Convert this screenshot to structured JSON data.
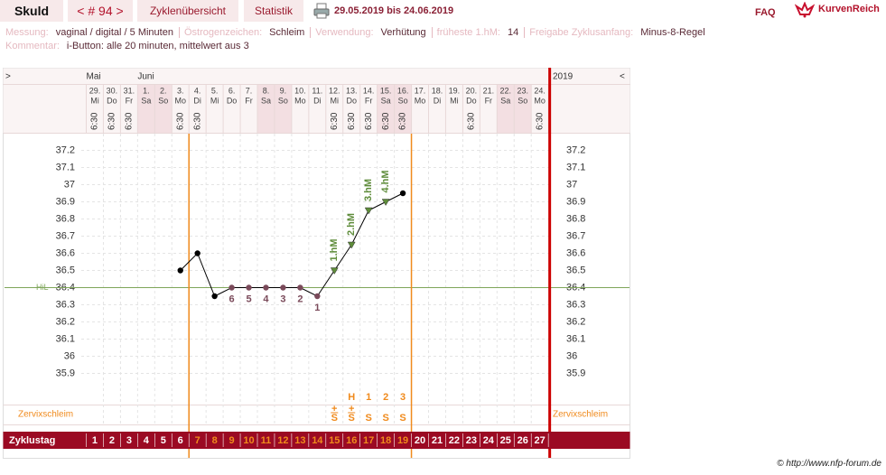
{
  "nav": {
    "user": "Skuld",
    "cycle": "< # 94 >",
    "overview": "Zyklenübersicht",
    "statistics": "Statistik",
    "range": "29.05.2019 bis 24.06.2019",
    "faq": "FAQ",
    "logo": "KurvenReich"
  },
  "info": [
    {
      "label": "Messung:",
      "value": "vaginal / digital / 5 Minuten"
    },
    {
      "label": "Östrogenzeichen:",
      "value": "Schleim"
    },
    {
      "label": "Verwendung:",
      "value": "Verhütung"
    },
    {
      "label": "früheste 1.hM:",
      "value": "14"
    },
    {
      "label": "Freigabe Zyklusanfang:",
      "value": "Minus-8-Regel"
    }
  ],
  "comment": {
    "label": "Kommentar:",
    "value": "i-Button: alle 20 minuten, mittelwert aus 3"
  },
  "chart_data": {
    "type": "line",
    "nav_left": ">",
    "nav_right": "<",
    "year": "2019",
    "month_labels": [
      "Mai",
      null,
      null,
      "Juni",
      null,
      null,
      null,
      null,
      null,
      null,
      null,
      null,
      null,
      null,
      null,
      null,
      null,
      null,
      null,
      null,
      null,
      null,
      null,
      null,
      null,
      null,
      null
    ],
    "categories": [
      "29.",
      "30.",
      "31.",
      "1.",
      "2.",
      "3.",
      "4.",
      "5.",
      "6.",
      "7.",
      "8.",
      "9.",
      "10.",
      "11.",
      "12.",
      "13.",
      "14.",
      "15.",
      "16.",
      "17.",
      "18.",
      "19.",
      "20.",
      "21.",
      "22.",
      "23.",
      "24."
    ],
    "weekdays": [
      "Mi",
      "Do",
      "Fr",
      "Sa",
      "So",
      "Mo",
      "Di",
      "Mi",
      "Do",
      "Fr",
      "Sa",
      "So",
      "Mo",
      "Di",
      "Mi",
      "Do",
      "Fr",
      "Sa",
      "So",
      "Mo",
      "Di",
      "Mi",
      "Do",
      "Fr",
      "Sa",
      "So",
      "Mo"
    ],
    "times": [
      "6:30",
      "6:30",
      "6:30",
      null,
      null,
      "6:30",
      "6:30",
      null,
      null,
      null,
      null,
      null,
      null,
      null,
      "6:30",
      "6:30",
      "6:30",
      "6:30",
      "6:30",
      null,
      null,
      null,
      "6:30",
      null,
      null,
      null,
      "6:30"
    ],
    "values": [
      null,
      null,
      null,
      null,
      null,
      36.5,
      36.6,
      36.35,
      36.4,
      36.4,
      36.4,
      36.4,
      36.4,
      36.35,
      36.5,
      36.65,
      36.85,
      36.9,
      36.95,
      null,
      null,
      null,
      null,
      null,
      null,
      null,
      null
    ],
    "point_labels": [
      null,
      null,
      null,
      null,
      null,
      null,
      null,
      null,
      "6",
      "5",
      "4",
      "3",
      "2",
      "1",
      "1.hM",
      "2.hM",
      "3.hM",
      "4.hM",
      null,
      null,
      null,
      null,
      null,
      null,
      null,
      null,
      null
    ],
    "ylim": [
      35.8,
      37.3
    ],
    "yticks": [
      37.2,
      37.1,
      37,
      36.9,
      36.8,
      36.7,
      36.6,
      36.5,
      36.4,
      36.3,
      36.2,
      36.1,
      36,
      35.9
    ],
    "hil": 36.4,
    "hil_label": "HiL",
    "mucus_label": "Zervixschleim",
    "peak": [
      null,
      null,
      null,
      null,
      null,
      null,
      null,
      null,
      null,
      null,
      null,
      null,
      null,
      null,
      null,
      "H",
      "1",
      "2",
      "3",
      null,
      null,
      null,
      null,
      null,
      null,
      null,
      null
    ],
    "mucus_plus": [
      null,
      null,
      null,
      null,
      null,
      null,
      null,
      null,
      null,
      null,
      null,
      null,
      null,
      null,
      "+",
      "+",
      null,
      null,
      null,
      null,
      null,
      null,
      null,
      null,
      null,
      null,
      null
    ],
    "mucus": [
      null,
      null,
      null,
      null,
      null,
      null,
      null,
      null,
      null,
      null,
      null,
      null,
      null,
      null,
      "S",
      "S",
      "S",
      "S",
      "S",
      null,
      null,
      null,
      null,
      null,
      null,
      null,
      null
    ],
    "cycle_label": "Zyklustag",
    "cycle_days": [
      1,
      2,
      3,
      4,
      5,
      6,
      7,
      8,
      9,
      10,
      11,
      12,
      13,
      14,
      15,
      16,
      17,
      18,
      19,
      20,
      21,
      22,
      23,
      24,
      25,
      26,
      27
    ],
    "fertile_window": {
      "first": 7,
      "last": 19
    },
    "line_color": "#000000",
    "low_color": "#7a4a5a",
    "hm_color": "#5e8c3a",
    "fertile_color": "#f08a1c",
    "cycle_row_color": "#9b0a23"
  },
  "copyright": "© http://www.nfp-forum.de"
}
